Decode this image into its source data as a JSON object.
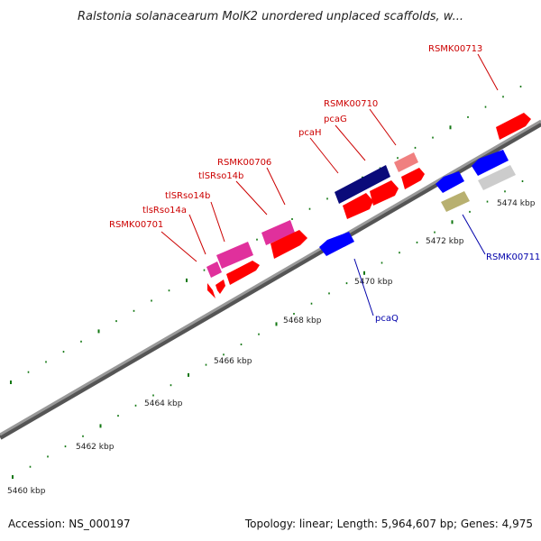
{
  "title": "Ralstonia solanacearum MolK2 unordered unplaced scaffolds, w...",
  "footer": {
    "accession": "Accession: NS_000197",
    "summary": "Topology: linear; Length: 5,964,607 bp; Genes: 4,975"
  },
  "scale_labels": [
    "5460 kbp",
    "5462 kbp",
    "5464 kbp",
    "5466 kbp",
    "5468 kbp",
    "5470 kbp",
    "5472 kbp",
    "5474 kbp"
  ],
  "colors": {
    "forward_gene": "#ff0000",
    "reverse_gene": "#0000ff",
    "rna": "#e0309c",
    "pink_gene": "#f08080",
    "dark_blue_gene": "#0a0a7a",
    "olive_gene": "#b8b070",
    "gray_gene": "#cccccc",
    "backbone": "#808080",
    "tick": "#117711",
    "label_forward": "#cc0000",
    "label_reverse": "#0000aa"
  },
  "gene_labels": [
    {
      "text": "RSMK00701",
      "strand": "forward"
    },
    {
      "text": "tlsRso14a",
      "strand": "forward"
    },
    {
      "text": "tlSRso14b",
      "strand": "forward"
    },
    {
      "text": "tlSRso14b",
      "strand": "forward"
    },
    {
      "text": "RSMK00706",
      "strand": "forward"
    },
    {
      "text": "pcaH",
      "strand": "forward"
    },
    {
      "text": "pcaG",
      "strand": "forward"
    },
    {
      "text": "RSMK00710",
      "strand": "forward"
    },
    {
      "text": "RSMK00713",
      "strand": "forward"
    },
    {
      "text": "RSMK00711",
      "strand": "reverse"
    },
    {
      "text": "pcaQ",
      "strand": "reverse"
    }
  ]
}
